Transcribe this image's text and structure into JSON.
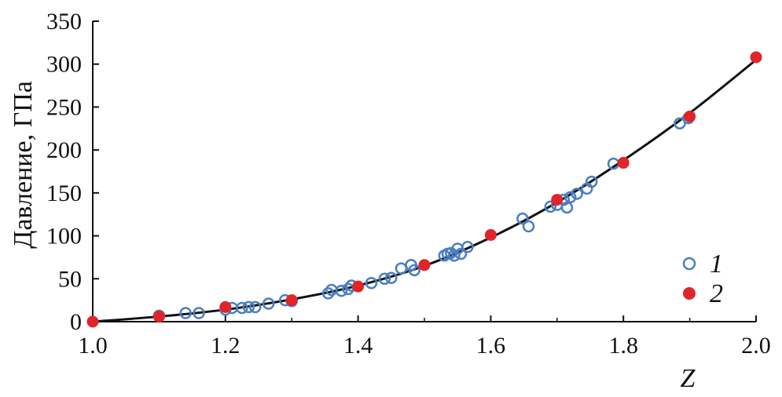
{
  "chart_data": {
    "type": "scatter",
    "title": "",
    "xlabel": "Z",
    "ylabel": "Давление, ГПа",
    "xlim": [
      1.0,
      2.0
    ],
    "ylim": [
      0,
      350
    ],
    "x_ticks": [
      "1.0",
      "1.2",
      "1.4",
      "1.6",
      "1.8",
      "2.0"
    ],
    "y_ticks": [
      "0",
      "50",
      "100",
      "150",
      "200",
      "250",
      "300",
      "350"
    ],
    "legend_position": "bottom-right",
    "grid": false,
    "series": [
      {
        "name": "1",
        "marker": "open-circle",
        "color": "#4a7fc1",
        "points": [
          [
            1.1,
            7
          ],
          [
            1.14,
            10
          ],
          [
            1.16,
            10
          ],
          [
            1.2,
            14
          ],
          [
            1.21,
            16
          ],
          [
            1.225,
            16
          ],
          [
            1.235,
            17
          ],
          [
            1.245,
            17
          ],
          [
            1.265,
            21
          ],
          [
            1.29,
            25
          ],
          [
            1.3,
            24
          ],
          [
            1.355,
            33
          ],
          [
            1.36,
            37
          ],
          [
            1.375,
            36
          ],
          [
            1.385,
            38
          ],
          [
            1.39,
            42
          ],
          [
            1.42,
            45
          ],
          [
            1.44,
            50
          ],
          [
            1.45,
            51
          ],
          [
            1.465,
            62
          ],
          [
            1.48,
            66
          ],
          [
            1.485,
            60
          ],
          [
            1.53,
            77
          ],
          [
            1.535,
            79
          ],
          [
            1.54,
            80
          ],
          [
            1.545,
            77
          ],
          [
            1.55,
            85
          ],
          [
            1.555,
            79
          ],
          [
            1.565,
            87
          ],
          [
            1.648,
            120
          ],
          [
            1.657,
            111
          ],
          [
            1.69,
            134
          ],
          [
            1.7,
            136
          ],
          [
            1.71,
            142
          ],
          [
            1.715,
            133
          ],
          [
            1.72,
            145
          ],
          [
            1.73,
            149
          ],
          [
            1.745,
            155
          ],
          [
            1.752,
            163
          ],
          [
            1.785,
            184
          ],
          [
            1.885,
            231
          ],
          [
            1.898,
            237
          ]
        ]
      },
      {
        "name": "2",
        "marker": "filled-circle",
        "color": "#e02428",
        "points": [
          [
            1.0,
            0
          ],
          [
            1.1,
            6
          ],
          [
            1.2,
            17
          ],
          [
            1.3,
            25
          ],
          [
            1.4,
            41
          ],
          [
            1.5,
            66
          ],
          [
            1.6,
            101
          ],
          [
            1.7,
            142
          ],
          [
            1.8,
            185
          ],
          [
            1.9,
            239
          ],
          [
            2.0,
            308
          ]
        ]
      }
    ],
    "fit_line": {
      "color": "#111111",
      "points": [
        [
          1.0,
          0
        ],
        [
          1.1,
          6
        ],
        [
          1.2,
          14
        ],
        [
          1.3,
          26
        ],
        [
          1.4,
          42
        ],
        [
          1.5,
          65
        ],
        [
          1.6,
          98
        ],
        [
          1.7,
          139
        ],
        [
          1.8,
          188
        ],
        [
          1.9,
          243
        ],
        [
          2.0,
          305
        ]
      ]
    }
  }
}
